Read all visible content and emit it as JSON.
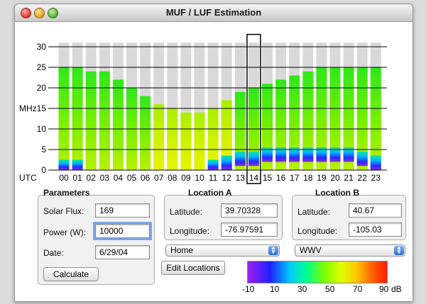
{
  "window": {
    "title": "MUF / LUF Estimation"
  },
  "chart_data": {
    "type": "bar",
    "ylabel": "MHz",
    "x_prefix": "UTC",
    "categories": [
      "00",
      "01",
      "02",
      "03",
      "04",
      "05",
      "06",
      "07",
      "08",
      "09",
      "10",
      "11",
      "12",
      "13",
      "14",
      "15",
      "16",
      "17",
      "18",
      "19",
      "20",
      "21",
      "22",
      "23"
    ],
    "y_ticks": [
      0,
      5,
      10,
      15,
      20,
      25,
      30
    ],
    "ylim": [
      0,
      30
    ],
    "muf": [
      25,
      25,
      24,
      24,
      22,
      20,
      18,
      16,
      15,
      14,
      14,
      15,
      17,
      19,
      20,
      21,
      22,
      23,
      24,
      25,
      25,
      25,
      25,
      25
    ],
    "luf": [
      1,
      1,
      0,
      0,
      0,
      0,
      0,
      0,
      0,
      0,
      0,
      1,
      2,
      3,
      3,
      4,
      4,
      4,
      4,
      4,
      4,
      4,
      3,
      2
    ],
    "selected_hour": "14",
    "grid": true
  },
  "parameters": {
    "title": "Parameters",
    "solar_flux_label": "Solar Flux:",
    "solar_flux": "169",
    "power_label": "Power (W):",
    "power": "10000",
    "date_label": "Date:",
    "date": "6/29/04",
    "calculate_label": "Calculate"
  },
  "location_a": {
    "title": "Location A",
    "latitude_label": "Latitude:",
    "latitude": "39.70328",
    "longitude_label": "Longitude:",
    "longitude": "-76.97591",
    "selected": "Home"
  },
  "location_b": {
    "title": "Location B",
    "latitude_label": "Latitude:",
    "latitude": "40.67",
    "longitude_label": "Longitude:",
    "longitude": "-105.03",
    "selected": "WWV"
  },
  "edit_locations_label": "Edit Locations",
  "scale": {
    "ticks": [
      "-10",
      "10",
      "30",
      "50",
      "70",
      "90"
    ],
    "unit": "dB"
  }
}
